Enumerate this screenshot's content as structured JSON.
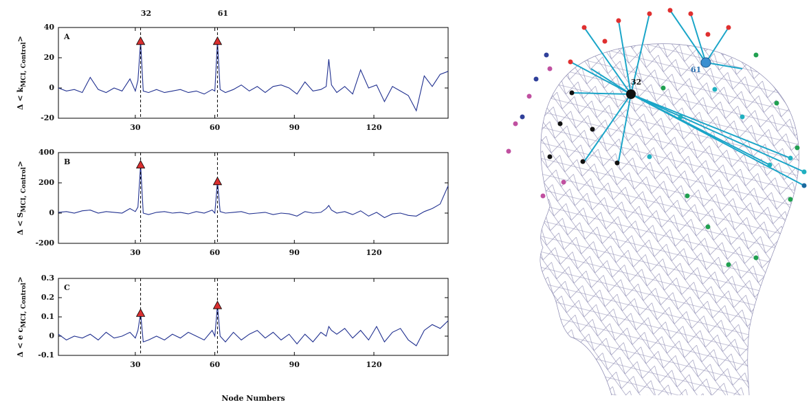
{
  "chart_data": [
    {
      "type": "line",
      "label": "A",
      "ylabel": "Δ < k",
      "ylabel_sub": "MCI, Control",
      "ylabel_end": ">",
      "color": "#1f2f8f",
      "marker_color": "#d93030",
      "highlight_x": [
        32,
        61
      ],
      "xlabel": "Node Numbers",
      "x": [
        1,
        4,
        7,
        10,
        13,
        16,
        19,
        22,
        25,
        28,
        30,
        31,
        32,
        33,
        35,
        38,
        41,
        44,
        47,
        50,
        53,
        56,
        59,
        60,
        61,
        62,
        64,
        67,
        70,
        73,
        76,
        79,
        82,
        85,
        88,
        91,
        94,
        97,
        100,
        102,
        103,
        104,
        106,
        109,
        112,
        115,
        118,
        121,
        124,
        127,
        130,
        133,
        136,
        139,
        142,
        145,
        148
      ],
      "values": [
        0,
        -2,
        -1,
        -3,
        7,
        -1,
        -3,
        0,
        -2,
        6,
        -2,
        5,
        31,
        -2,
        -3,
        -1,
        -3,
        -2,
        -1,
        -3,
        -2,
        -4,
        -1,
        -2,
        31,
        -1,
        -3,
        -1,
        2,
        -2,
        1,
        -3,
        1,
        2,
        0,
        -4,
        4,
        -2,
        -1,
        1,
        19,
        2,
        -3,
        1,
        -4,
        12,
        0,
        2,
        -9,
        1,
        -2,
        -5,
        -15,
        8,
        1,
        9,
        11
      ],
      "xlim": [
        1,
        148
      ],
      "xticks": [
        30,
        60,
        90,
        120
      ],
      "ylim": [
        -20,
        40
      ],
      "yticks": [
        -20,
        0,
        20,
        40
      ]
    },
    {
      "type": "line",
      "label": "B",
      "ylabel": "Δ < S",
      "ylabel_sub": "MCI, Control",
      "ylabel_end": ">",
      "color": "#1f2f8f",
      "marker_color": "#d93030",
      "highlight_x": [
        32,
        61
      ],
      "x": [
        1,
        4,
        7,
        10,
        13,
        16,
        19,
        22,
        25,
        28,
        30,
        31,
        32,
        33,
        35,
        38,
        41,
        44,
        47,
        50,
        53,
        56,
        59,
        60,
        61,
        62,
        64,
        67,
        70,
        73,
        76,
        79,
        82,
        85,
        88,
        91,
        94,
        97,
        100,
        102,
        103,
        104,
        106,
        109,
        112,
        115,
        118,
        121,
        124,
        127,
        130,
        133,
        136,
        139,
        142,
        145,
        148
      ],
      "values": [
        5,
        10,
        0,
        15,
        20,
        0,
        10,
        5,
        0,
        30,
        10,
        40,
        320,
        0,
        -10,
        5,
        10,
        0,
        5,
        -5,
        10,
        0,
        20,
        0,
        210,
        10,
        0,
        5,
        10,
        -5,
        0,
        5,
        -10,
        0,
        -5,
        -20,
        10,
        0,
        5,
        30,
        50,
        20,
        0,
        10,
        -10,
        15,
        -20,
        5,
        -30,
        -5,
        0,
        -15,
        -20,
        10,
        30,
        60,
        180
      ],
      "xlim": [
        1,
        148
      ],
      "xticks": [
        30,
        60,
        90,
        120
      ],
      "ylim": [
        -200,
        400
      ],
      "yticks": [
        -200,
        0,
        200,
        400
      ]
    },
    {
      "type": "line",
      "label": "C",
      "ylabel": "Δ < e c",
      "ylabel_sub": "MCI, Control",
      "ylabel_end": ">",
      "color": "#1f2f8f",
      "marker_color": "#d93030",
      "highlight_x": [
        32,
        61
      ],
      "x": [
        1,
        4,
        7,
        10,
        13,
        16,
        19,
        22,
        25,
        28,
        30,
        31,
        32,
        33,
        35,
        38,
        41,
        44,
        47,
        50,
        53,
        56,
        59,
        60,
        61,
        62,
        64,
        67,
        70,
        73,
        76,
        79,
        82,
        85,
        88,
        91,
        94,
        97,
        100,
        102,
        103,
        104,
        106,
        109,
        112,
        115,
        118,
        121,
        124,
        127,
        130,
        133,
        136,
        139,
        142,
        145,
        148
      ],
      "values": [
        0.01,
        -0.02,
        0,
        -0.01,
        0.01,
        -0.02,
        0.02,
        -0.01,
        0,
        0.02,
        -0.01,
        0.03,
        0.12,
        -0.03,
        -0.02,
        0,
        -0.02,
        0.01,
        -0.01,
        0.02,
        0,
        -0.02,
        0.03,
        0,
        0.16,
        0,
        -0.03,
        0.02,
        -0.02,
        0.01,
        0.03,
        -0.01,
        0.02,
        -0.02,
        0.01,
        -0.04,
        0.01,
        -0.03,
        0.02,
        0,
        0.05,
        0.03,
        0.01,
        0.04,
        -0.01,
        0.03,
        -0.02,
        0.05,
        -0.03,
        0.02,
        0.04,
        -0.02,
        -0.05,
        0.03,
        0.06,
        0.04,
        0.08
      ],
      "xlim": [
        1,
        148
      ],
      "xticks": [
        30,
        60,
        90,
        120
      ],
      "ylim": [
        -0.1,
        0.3
      ],
      "yticks": [
        -0.1,
        0,
        0.1,
        0.2,
        0.3
      ]
    }
  ]
}
